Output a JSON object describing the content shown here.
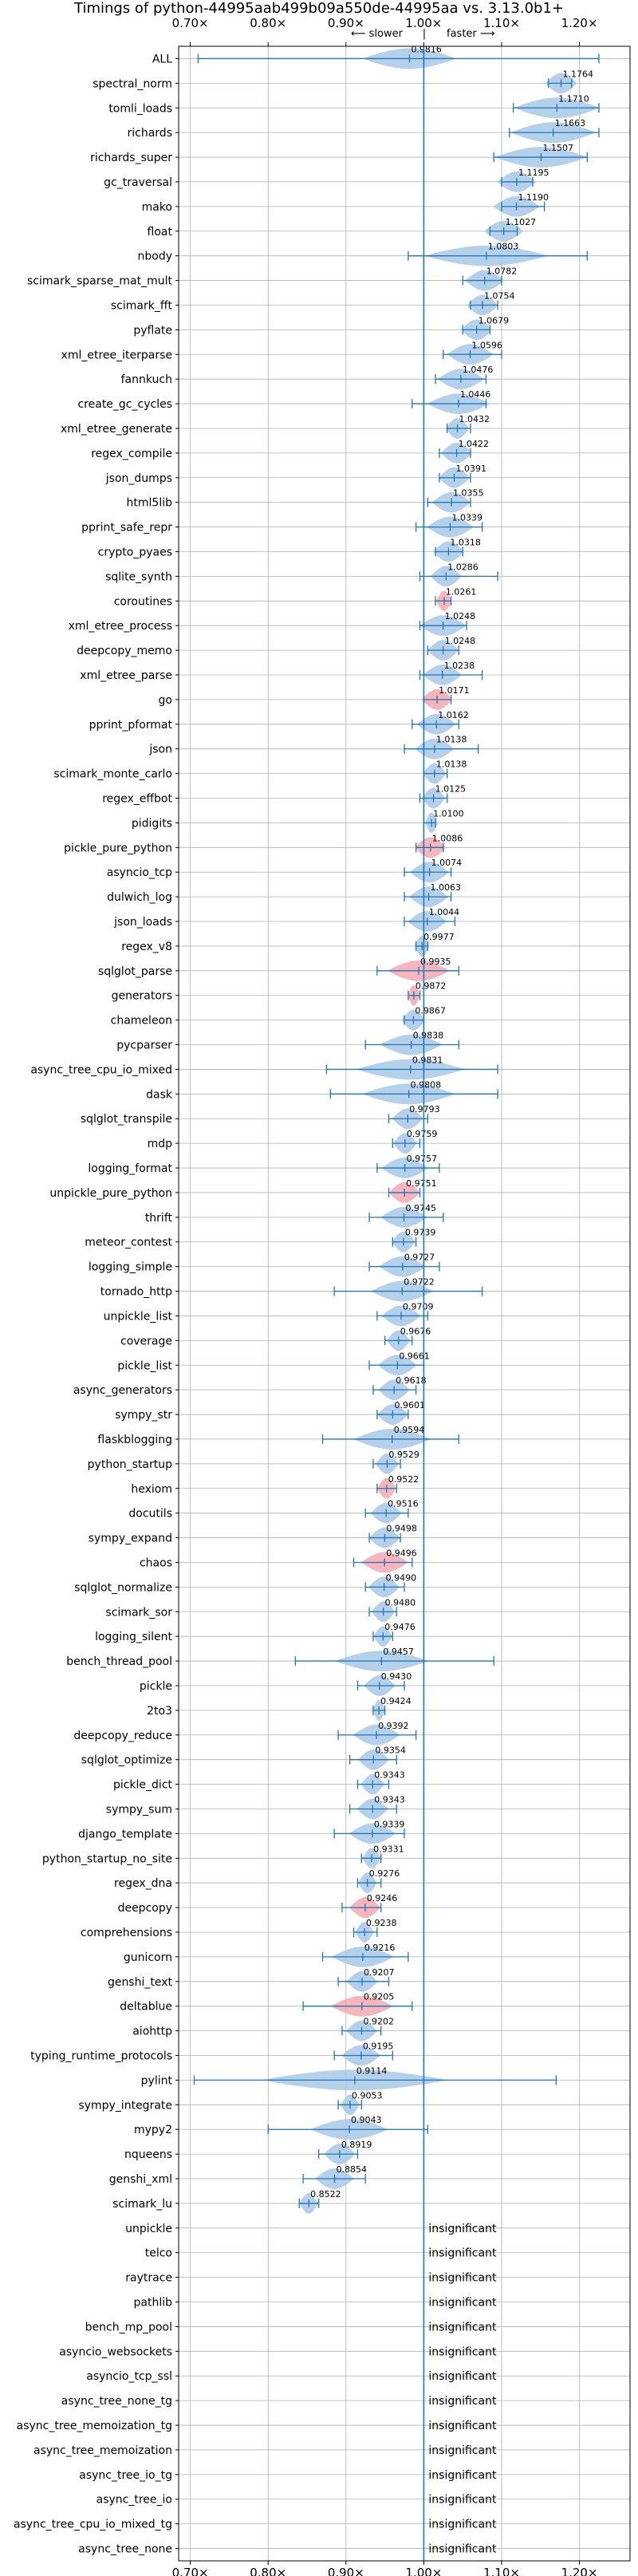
{
  "title": "Timings of python-44995aab499b09a550de-44995aa vs. 3.13.0b1+",
  "direction_left": "⟵ slower",
  "direction_sep": "|",
  "direction_right": "faster ⟶",
  "insignificant_label": "insignificant",
  "colors": {
    "faster": "#a8c8e8",
    "slower": "#f4a7b0",
    "errorbar": "#1f77b4",
    "baseline": "#1f77b4",
    "grid": "#b0b0b0"
  },
  "chart_data": {
    "type": "violin",
    "orientation": "horizontal",
    "xlim": [
      0.685,
      1.265
    ],
    "x_ticks": [
      "0.70×",
      "0.80×",
      "0.90×",
      "1.00×",
      "1.10×",
      "1.20×"
    ],
    "x_tick_values": [
      0.7,
      0.8,
      0.9,
      1.0,
      1.1,
      1.2
    ],
    "baseline": 1.0,
    "grid": true,
    "benchmarks": [
      {
        "name": "ALL",
        "value": 0.9816,
        "label": "0.9816",
        "err": [
          0.71,
          1.225
        ],
        "spread": 0.06,
        "direction": "slower_wide"
      },
      {
        "name": "spectral_norm",
        "value": 1.1764,
        "label": "1.1764",
        "err": [
          1.16,
          1.19
        ],
        "spread": 0.02
      },
      {
        "name": "tomli_loads",
        "value": 1.171,
        "label": "1.1710",
        "err": [
          1.115,
          1.225
        ],
        "spread": 0.055
      },
      {
        "name": "richards",
        "value": 1.1663,
        "label": "1.1663",
        "err": [
          1.11,
          1.225
        ],
        "spread": 0.055
      },
      {
        "name": "richards_super",
        "value": 1.1507,
        "label": "1.1507",
        "err": [
          1.09,
          1.21
        ],
        "spread": 0.06
      },
      {
        "name": "gc_traversal",
        "value": 1.1195,
        "label": "1.1195",
        "err": [
          1.1,
          1.14
        ],
        "spread": 0.025
      },
      {
        "name": "mako",
        "value": 1.119,
        "label": "1.1190",
        "err": [
          1.1,
          1.155
        ],
        "spread": 0.03
      },
      {
        "name": "float",
        "value": 1.1027,
        "label": "1.1027",
        "err": [
          1.085,
          1.12
        ],
        "spread": 0.025
      },
      {
        "name": "nbody",
        "value": 1.0803,
        "label": "1.0803",
        "err": [
          0.98,
          1.21
        ],
        "spread": 0.08
      },
      {
        "name": "scimark_sparse_mat_mult",
        "value": 1.0782,
        "label": "1.0782",
        "err": [
          1.05,
          1.1
        ],
        "spread": 0.025
      },
      {
        "name": "scimark_fft",
        "value": 1.0754,
        "label": "1.0754",
        "err": [
          1.06,
          1.095
        ],
        "spread": 0.02
      },
      {
        "name": "pyflate",
        "value": 1.0679,
        "label": "1.0679",
        "err": [
          1.05,
          1.085
        ],
        "spread": 0.02
      },
      {
        "name": "xml_etree_iterparse",
        "value": 1.0596,
        "label": "1.0596",
        "err": [
          1.025,
          1.1
        ],
        "spread": 0.03
      },
      {
        "name": "fannkuch",
        "value": 1.0476,
        "label": "1.0476",
        "err": [
          1.015,
          1.08
        ],
        "spread": 0.03
      },
      {
        "name": "create_gc_cycles",
        "value": 1.0446,
        "label": "1.0446",
        "err": [
          0.985,
          1.08
        ],
        "spread": 0.04
      },
      {
        "name": "xml_etree_generate",
        "value": 1.0432,
        "label": "1.0432",
        "err": [
          1.03,
          1.06
        ],
        "spread": 0.015
      },
      {
        "name": "regex_compile",
        "value": 1.0422,
        "label": "1.0422",
        "err": [
          1.02,
          1.06
        ],
        "spread": 0.02
      },
      {
        "name": "json_dumps",
        "value": 1.0391,
        "label": "1.0391",
        "err": [
          1.02,
          1.06
        ],
        "spread": 0.02
      },
      {
        "name": "html5lib",
        "value": 1.0355,
        "label": "1.0355",
        "err": [
          1.005,
          1.06
        ],
        "spread": 0.025
      },
      {
        "name": "pprint_safe_repr",
        "value": 1.0339,
        "label": "1.0339",
        "err": [
          0.99,
          1.075
        ],
        "spread": 0.03
      },
      {
        "name": "crypto_pyaes",
        "value": 1.0318,
        "label": "1.0318",
        "err": [
          1.015,
          1.05
        ],
        "spread": 0.02
      },
      {
        "name": "sqlite_synth",
        "value": 1.0286,
        "label": "1.0286",
        "err": [
          0.995,
          1.095
        ],
        "spread": 0.02
      },
      {
        "name": "coroutines",
        "value": 1.0261,
        "label": "1.0261",
        "err": [
          1.015,
          1.035
        ],
        "spread": 0.01,
        "color": "slower"
      },
      {
        "name": "xml_etree_process",
        "value": 1.0248,
        "label": "1.0248",
        "err": [
          0.995,
          1.055
        ],
        "spread": 0.03
      },
      {
        "name": "deepcopy_memo",
        "value": 1.0248,
        "label": "1.0248",
        "err": [
          1.005,
          1.045
        ],
        "spread": 0.02
      },
      {
        "name": "xml_etree_parse",
        "value": 1.0238,
        "label": "1.0238",
        "err": [
          0.995,
          1.075
        ],
        "spread": 0.025
      },
      {
        "name": "go",
        "value": 1.0171,
        "label": "1.0171",
        "err": [
          1.0,
          1.035
        ],
        "spread": 0.02,
        "color": "slower"
      },
      {
        "name": "pprint_pformat",
        "value": 1.0162,
        "label": "1.0162",
        "err": [
          0.985,
          1.045
        ],
        "spread": 0.025
      },
      {
        "name": "json",
        "value": 1.0138,
        "label": "1.0138",
        "err": [
          0.975,
          1.07
        ],
        "spread": 0.025
      },
      {
        "name": "scimark_monte_carlo",
        "value": 1.0138,
        "label": "1.0138",
        "err": [
          1.0,
          1.03
        ],
        "spread": 0.015
      },
      {
        "name": "regex_effbot",
        "value": 1.0125,
        "label": "1.0125",
        "err": [
          0.995,
          1.03
        ],
        "spread": 0.015
      },
      {
        "name": "pidigits",
        "value": 1.01,
        "label": "1.0100",
        "err": [
          1.0,
          1.015
        ],
        "spread": 0.008
      },
      {
        "name": "pickle_pure_python",
        "value": 1.0086,
        "label": "1.0086",
        "err": [
          0.99,
          1.025
        ],
        "spread": 0.02,
        "color": "slower"
      },
      {
        "name": "asyncio_tcp",
        "value": 1.0074,
        "label": "1.0074",
        "err": [
          0.975,
          1.035
        ],
        "spread": 0.025
      },
      {
        "name": "dulwich_log",
        "value": 1.0063,
        "label": "1.0063",
        "err": [
          0.975,
          1.035
        ],
        "spread": 0.025
      },
      {
        "name": "json_loads",
        "value": 1.0044,
        "label": "1.0044",
        "err": [
          0.975,
          1.04
        ],
        "spread": 0.025
      },
      {
        "name": "regex_v8",
        "value": 0.9977,
        "label": "0.9977",
        "err": [
          0.99,
          1.005
        ],
        "spread": 0.01
      },
      {
        "name": "sqlglot_parse",
        "value": 0.9935,
        "label": "0.9935",
        "err": [
          0.94,
          1.045
        ],
        "spread": 0.04,
        "color": "slower"
      },
      {
        "name": "generators",
        "value": 0.9872,
        "label": "0.9872",
        "err": [
          0.98,
          0.995
        ],
        "spread": 0.008,
        "color": "slower"
      },
      {
        "name": "chameleon",
        "value": 0.9867,
        "label": "0.9867",
        "err": [
          0.975,
          1.0
        ],
        "spread": 0.015
      },
      {
        "name": "pycparser",
        "value": 0.9838,
        "label": "0.9838",
        "err": [
          0.925,
          1.045
        ],
        "spread": 0.04
      },
      {
        "name": "async_tree_cpu_io_mixed",
        "value": 0.9831,
        "label": "0.9831",
        "err": [
          0.875,
          1.095
        ],
        "spread": 0.07
      },
      {
        "name": "dask",
        "value": 0.9808,
        "label": "0.9808",
        "err": [
          0.88,
          1.095
        ],
        "spread": 0.06
      },
      {
        "name": "sqlglot_transpile",
        "value": 0.9793,
        "label": "0.9793",
        "err": [
          0.955,
          1.005
        ],
        "spread": 0.02
      },
      {
        "name": "mdp",
        "value": 0.9759,
        "label": "0.9759",
        "err": [
          0.96,
          0.995
        ],
        "spread": 0.015
      },
      {
        "name": "logging_format",
        "value": 0.9757,
        "label": "0.9757",
        "err": [
          0.94,
          1.02
        ],
        "spread": 0.03
      },
      {
        "name": "unpickle_pure_python",
        "value": 0.9751,
        "label": "0.9751",
        "err": [
          0.955,
          0.995
        ],
        "spread": 0.02,
        "color": "slower"
      },
      {
        "name": "thrift",
        "value": 0.9745,
        "label": "0.9745",
        "err": [
          0.93,
          1.025
        ],
        "spread": 0.03
      },
      {
        "name": "meteor_contest",
        "value": 0.9739,
        "label": "0.9739",
        "err": [
          0.96,
          0.99
        ],
        "spread": 0.015
      },
      {
        "name": "logging_simple",
        "value": 0.9727,
        "label": "0.9727",
        "err": [
          0.93,
          1.02
        ],
        "spread": 0.03
      },
      {
        "name": "tornado_http",
        "value": 0.9722,
        "label": "0.9722",
        "err": [
          0.885,
          1.075
        ],
        "spread": 0.04
      },
      {
        "name": "unpickle_list",
        "value": 0.9709,
        "label": "0.9709",
        "err": [
          0.94,
          1.005
        ],
        "spread": 0.025
      },
      {
        "name": "coverage",
        "value": 0.9676,
        "label": "0.9676",
        "err": [
          0.95,
          0.985
        ],
        "spread": 0.015
      },
      {
        "name": "pickle_list",
        "value": 0.9661,
        "label": "0.9661",
        "err": [
          0.93,
          1.0
        ],
        "spread": 0.025
      },
      {
        "name": "async_generators",
        "value": 0.9618,
        "label": "0.9618",
        "err": [
          0.935,
          0.99
        ],
        "spread": 0.02
      },
      {
        "name": "sympy_str",
        "value": 0.9601,
        "label": "0.9601",
        "err": [
          0.94,
          0.98
        ],
        "spread": 0.02
      },
      {
        "name": "flaskblogging",
        "value": 0.9594,
        "label": "0.9594",
        "err": [
          0.87,
          1.045
        ],
        "spread": 0.05
      },
      {
        "name": "python_startup",
        "value": 0.9529,
        "label": "0.9529",
        "err": [
          0.935,
          0.97
        ],
        "spread": 0.015
      },
      {
        "name": "hexiom",
        "value": 0.9522,
        "label": "0.9522",
        "err": [
          0.94,
          0.965
        ],
        "spread": 0.012,
        "color": "slower"
      },
      {
        "name": "docutils",
        "value": 0.9516,
        "label": "0.9516",
        "err": [
          0.925,
          0.98
        ],
        "spread": 0.02
      },
      {
        "name": "sympy_expand",
        "value": 0.9498,
        "label": "0.9498",
        "err": [
          0.93,
          0.97
        ],
        "spread": 0.02
      },
      {
        "name": "chaos",
        "value": 0.9496,
        "label": "0.9496",
        "err": [
          0.91,
          0.985
        ],
        "spread": 0.03,
        "color": "slower"
      },
      {
        "name": "sqlglot_normalize",
        "value": 0.949,
        "label": "0.9490",
        "err": [
          0.925,
          0.975
        ],
        "spread": 0.02
      },
      {
        "name": "scimark_sor",
        "value": 0.948,
        "label": "0.9480",
        "err": [
          0.93,
          0.965
        ],
        "spread": 0.015
      },
      {
        "name": "logging_silent",
        "value": 0.9476,
        "label": "0.9476",
        "err": [
          0.935,
          0.96
        ],
        "spread": 0.012
      },
      {
        "name": "bench_thread_pool",
        "value": 0.9457,
        "label": "0.9457",
        "err": [
          0.835,
          1.09
        ],
        "spread": 0.06
      },
      {
        "name": "pickle",
        "value": 0.943,
        "label": "0.9430",
        "err": [
          0.915,
          0.975
        ],
        "spread": 0.02
      },
      {
        "name": "2to3",
        "value": 0.9424,
        "label": "0.9424",
        "err": [
          0.935,
          0.95
        ],
        "spread": 0.008
      },
      {
        "name": "deepcopy_reduce",
        "value": 0.9392,
        "label": "0.9392",
        "err": [
          0.89,
          0.99
        ],
        "spread": 0.03
      },
      {
        "name": "sqlglot_optimize",
        "value": 0.9354,
        "label": "0.9354",
        "err": [
          0.905,
          0.965
        ],
        "spread": 0.02
      },
      {
        "name": "pickle_dict",
        "value": 0.9343,
        "label": "0.9343",
        "err": [
          0.915,
          0.955
        ],
        "spread": 0.015
      },
      {
        "name": "sympy_sum",
        "value": 0.9343,
        "label": "0.9343",
        "err": [
          0.905,
          0.965
        ],
        "spread": 0.02
      },
      {
        "name": "django_template",
        "value": 0.9339,
        "label": "0.9339",
        "err": [
          0.885,
          0.975
        ],
        "spread": 0.03
      },
      {
        "name": "python_startup_no_site",
        "value": 0.9331,
        "label": "0.9331",
        "err": [
          0.92,
          0.945
        ],
        "spread": 0.012
      },
      {
        "name": "regex_dna",
        "value": 0.9276,
        "label": "0.9276",
        "err": [
          0.915,
          0.945
        ],
        "spread": 0.012
      },
      {
        "name": "deepcopy",
        "value": 0.9246,
        "label": "0.9246",
        "err": [
          0.895,
          0.945
        ],
        "spread": 0.02,
        "color": "slower"
      },
      {
        "name": "comprehensions",
        "value": 0.9238,
        "label": "0.9238",
        "err": [
          0.91,
          0.94
        ],
        "spread": 0.012
      },
      {
        "name": "gunicorn",
        "value": 0.9216,
        "label": "0.9216",
        "err": [
          0.87,
          0.98
        ],
        "spread": 0.04
      },
      {
        "name": "genshi_text",
        "value": 0.9207,
        "label": "0.9207",
        "err": [
          0.89,
          0.955
        ],
        "spread": 0.02
      },
      {
        "name": "deltablue",
        "value": 0.9205,
        "label": "0.9205",
        "err": [
          0.845,
          0.985
        ],
        "spread": 0.04,
        "color": "slower"
      },
      {
        "name": "aiohttp",
        "value": 0.9202,
        "label": "0.9202",
        "err": [
          0.895,
          0.945
        ],
        "spread": 0.02
      },
      {
        "name": "typing_runtime_protocols",
        "value": 0.9195,
        "label": "0.9195",
        "err": [
          0.885,
          0.96
        ],
        "spread": 0.025
      },
      {
        "name": "pylint",
        "value": 0.9114,
        "label": "0.9114",
        "err": [
          0.705,
          1.17
        ],
        "spread": 0.12
      },
      {
        "name": "sympy_integrate",
        "value": 0.9053,
        "label": "0.9053",
        "err": [
          0.89,
          0.92
        ],
        "spread": 0.012
      },
      {
        "name": "mypy2",
        "value": 0.9043,
        "label": "0.9043",
        "err": [
          0.8,
          1.005
        ],
        "spread": 0.05
      },
      {
        "name": "nqueens",
        "value": 0.8919,
        "label": "0.8919",
        "err": [
          0.865,
          0.915
        ],
        "spread": 0.02
      },
      {
        "name": "genshi_xml",
        "value": 0.8854,
        "label": "0.8854",
        "err": [
          0.845,
          0.925
        ],
        "spread": 0.025
      },
      {
        "name": "scimark_lu",
        "value": 0.8522,
        "label": "0.8522",
        "err": [
          0.84,
          0.865
        ],
        "spread": 0.012
      },
      {
        "name": "unpickle",
        "insignificant": true
      },
      {
        "name": "telco",
        "insignificant": true
      },
      {
        "name": "raytrace",
        "insignificant": true
      },
      {
        "name": "pathlib",
        "insignificant": true
      },
      {
        "name": "bench_mp_pool",
        "insignificant": true
      },
      {
        "name": "asyncio_websockets",
        "insignificant": true
      },
      {
        "name": "asyncio_tcp_ssl",
        "insignificant": true
      },
      {
        "name": "async_tree_none_tg",
        "insignificant": true
      },
      {
        "name": "async_tree_memoization_tg",
        "insignificant": true
      },
      {
        "name": "async_tree_memoization",
        "insignificant": true
      },
      {
        "name": "async_tree_io_tg",
        "insignificant": true
      },
      {
        "name": "async_tree_io",
        "insignificant": true
      },
      {
        "name": "async_tree_cpu_io_mixed_tg",
        "insignificant": true
      },
      {
        "name": "async_tree_none",
        "insignificant": true
      }
    ]
  }
}
